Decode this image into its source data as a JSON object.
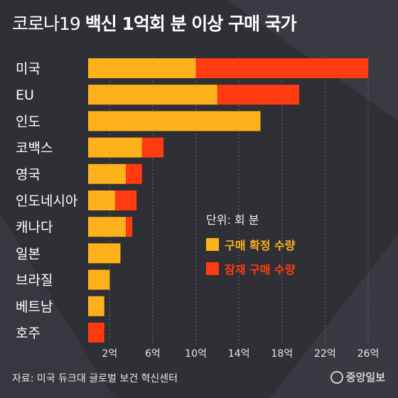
{
  "title": {
    "light": "코로나19",
    "bold": "백신 1억회 분 이상 구매 국가"
  },
  "colors": {
    "confirmed": "#ffb11b",
    "potential": "#ff3b0f",
    "background": "#2f3036",
    "grid": "#6a6c72"
  },
  "legend": {
    "unit": "단위: 회 분",
    "confirmed": "구매 확정 수량",
    "potential": "잠재 구매 수량"
  },
  "source": "자료: 미국 듀크대 글로벌 보건 혁신센터",
  "logo": "중앙일보",
  "chart_data": {
    "type": "bar",
    "orientation": "horizontal",
    "stacked": true,
    "categories": [
      "미국",
      "EU",
      "인도",
      "코백스",
      "영국",
      "인도네시아",
      "캐나다",
      "일본",
      "브라질",
      "베트남",
      "호주"
    ],
    "series": [
      {
        "name": "구매 확정 수량",
        "values": [
          10.0,
          12.0,
          16.0,
          5.0,
          3.5,
          2.5,
          3.5,
          3.0,
          2.0,
          1.5,
          0.0
        ]
      },
      {
        "name": "잠재 구매 수량",
        "values": [
          16.0,
          7.6,
          0.0,
          2.0,
          1.5,
          2.0,
          0.6,
          0.0,
          0.0,
          0.0,
          1.5
        ]
      }
    ],
    "x_ticks": [
      2,
      6,
      10,
      14,
      18,
      22,
      26
    ],
    "x_tick_labels": [
      "2억",
      "6억",
      "10억",
      "14억",
      "18억",
      "22억",
      "26억"
    ],
    "xlim": [
      0,
      26
    ],
    "grid": "vertical-dashed"
  }
}
